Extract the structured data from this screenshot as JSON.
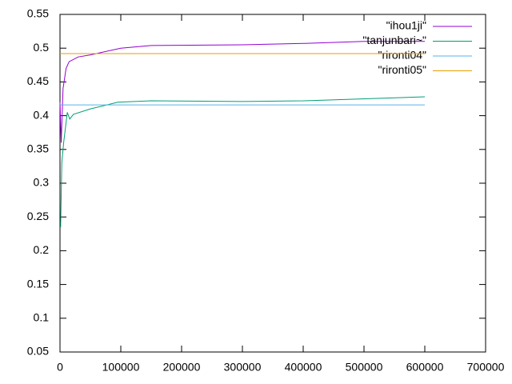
{
  "chart_data": {
    "type": "line",
    "xlim": [
      0,
      700000
    ],
    "xticks": [
      0,
      100000,
      200000,
      300000,
      400000,
      500000,
      600000,
      700000
    ],
    "ylim": [
      0.05,
      0.55
    ],
    "yticks": [
      0.05,
      0.1,
      0.15,
      0.2,
      0.25,
      0.3,
      0.35,
      0.4,
      0.45,
      0.5,
      0.55
    ],
    "legend": "top-right",
    "series": [
      {
        "name": "\"ihou1ji\"",
        "color": "#9400d3",
        "x": [
          0,
          2000,
          5000,
          10000,
          15000,
          30000,
          50000,
          100000,
          150000,
          300000,
          400000,
          500000,
          600000
        ],
        "values": [
          0.42,
          0.36,
          0.44,
          0.47,
          0.48,
          0.487,
          0.49,
          0.5,
          0.504,
          0.505,
          0.507,
          0.51,
          0.51
        ]
      },
      {
        "name": "\"tanjunbari~\"",
        "color": "#009e73",
        "x": [
          1000,
          3000,
          6000,
          12000,
          16000,
          22000,
          50000,
          95000,
          150000,
          300000,
          400000,
          600000
        ],
        "values": [
          0.235,
          0.33,
          0.36,
          0.405,
          0.395,
          0.402,
          0.41,
          0.42,
          0.422,
          0.421,
          0.422,
          0.428
        ]
      },
      {
        "name": "\"rironti04\"",
        "color": "#56b4e9",
        "x": [
          0,
          600000
        ],
        "values": [
          0.416,
          0.416
        ]
      },
      {
        "name": "\"rironti05\"",
        "color": "#e69f00",
        "x": [
          0,
          600000
        ],
        "values": [
          0.492,
          0.492
        ]
      }
    ]
  }
}
